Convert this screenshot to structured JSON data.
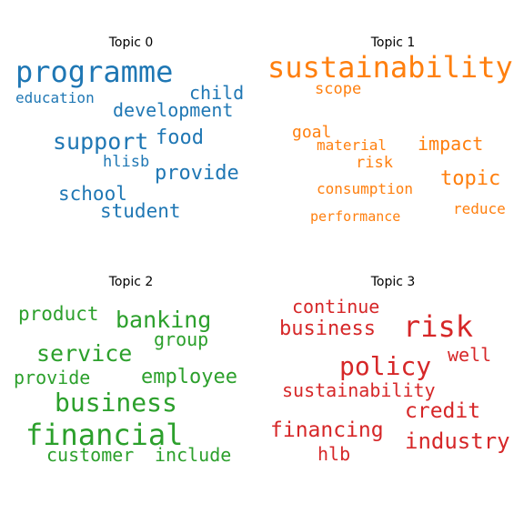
{
  "colors": {
    "topic_0": "#1f77b4",
    "topic_1": "#ff7f0e",
    "topic_2": "#2ca02c",
    "topic_3": "#d62728"
  },
  "topics": [
    {
      "title": "Topic 0",
      "words": [
        "programme",
        "education",
        "child",
        "development",
        "support",
        "food",
        "hlisb",
        "provide",
        "school",
        "student"
      ]
    },
    {
      "title": "Topic 1",
      "words": [
        "sustainability",
        "scope",
        "goal",
        "material",
        "impact",
        "risk",
        "topic",
        "consumption",
        "reduce",
        "performance"
      ]
    },
    {
      "title": "Topic 2",
      "words": [
        "product",
        "banking",
        "group",
        "service",
        "provide",
        "employee",
        "business",
        "financial",
        "customer",
        "include"
      ]
    },
    {
      "title": "Topic 3",
      "words": [
        "continue",
        "business",
        "risk",
        "well",
        "policy",
        "sustainability",
        "credit",
        "financing",
        "industry",
        "hlb"
      ]
    }
  ]
}
